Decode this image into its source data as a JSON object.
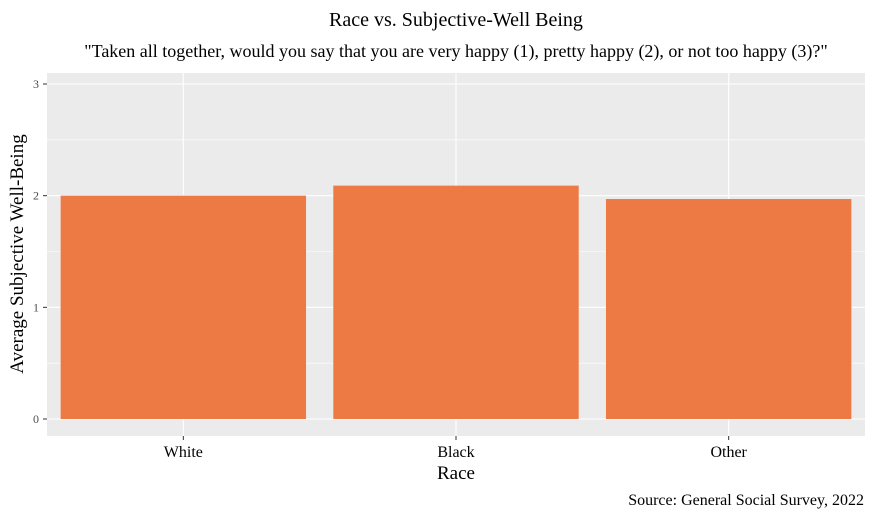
{
  "chart_data": {
    "type": "bar",
    "title": "Race vs. Subjective-Well Being",
    "subtitle": "\"Taken all together, would you say that you are very happy (1), pretty happy (2), or not too happy (3)?\"",
    "xlabel": "Race",
    "ylabel": "Average Subjective Well-Being",
    "caption": "Source: General Social Survey, 2022",
    "categories": [
      "White",
      "Black",
      "Other"
    ],
    "values": [
      2.0,
      2.09,
      1.97
    ],
    "ylim": [
      0,
      3
    ],
    "yticks": [
      "0",
      "1",
      "2",
      "3"
    ],
    "grid": true,
    "legend": "none",
    "bar_color": "#ED7A45",
    "panel_color": "#EBEBEB",
    "grid_color": "#FFFFFF"
  }
}
